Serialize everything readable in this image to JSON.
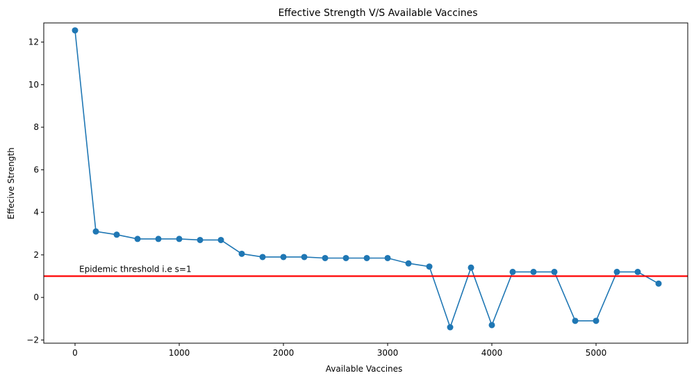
{
  "chart_data": {
    "type": "line",
    "title": "Effective Strength V/S Available Vaccines",
    "xlabel": "Available Vaccines",
    "ylabel": "Effecive Strength",
    "xlim": [
      -300,
      5880
    ],
    "ylim": [
      -2.15,
      12.9
    ],
    "xticks": [
      0,
      1000,
      2000,
      3000,
      4000,
      5000
    ],
    "yticks": [
      -2,
      0,
      2,
      4,
      6,
      8,
      10,
      12
    ],
    "grid": false,
    "line_color": "#1f77b4",
    "marker": "circle",
    "x": [
      0,
      200,
      400,
      600,
      800,
      1000,
      1200,
      1400,
      1600,
      1800,
      2000,
      2200,
      2400,
      2600,
      2800,
      3000,
      3200,
      3400,
      3600,
      3800,
      4000,
      4200,
      4400,
      4600,
      4800,
      5000,
      5200,
      5400,
      5600
    ],
    "y": [
      12.55,
      3.1,
      2.95,
      2.75,
      2.75,
      2.75,
      2.7,
      2.7,
      2.05,
      1.9,
      1.9,
      1.9,
      1.85,
      1.85,
      1.85,
      1.85,
      1.6,
      1.45,
      -1.4,
      1.4,
      -1.3,
      1.2,
      1.2,
      1.2,
      -1.1,
      -1.1,
      1.2,
      1.2,
      0.65
    ],
    "threshold": {
      "y": 1,
      "color": "#ff0000",
      "label": "Epidemic threshold i.e s=1"
    }
  }
}
